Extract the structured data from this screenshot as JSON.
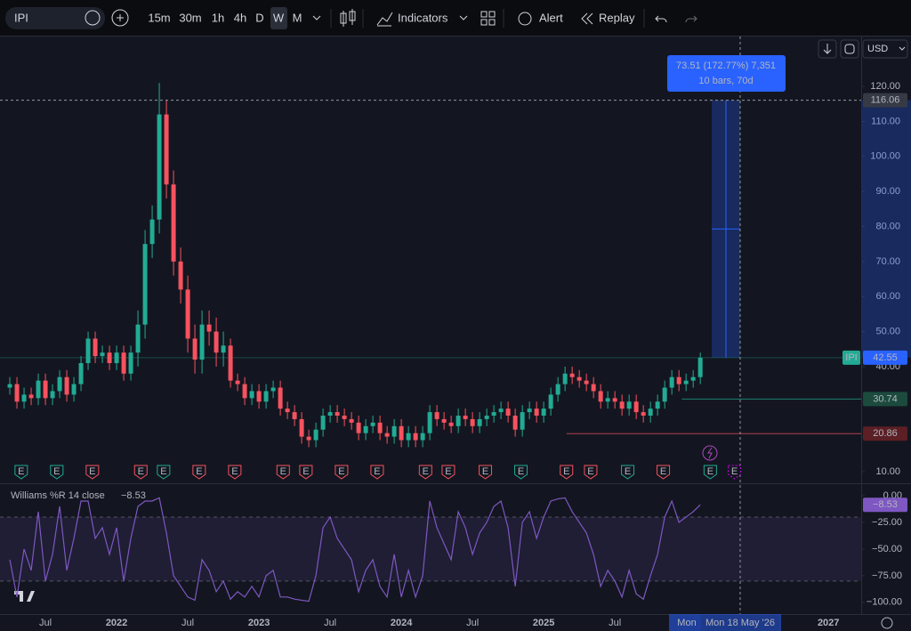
{
  "toolbar": {
    "symbol": "IPI",
    "intervals": [
      "15m",
      "30m",
      "1h",
      "4h",
      "D",
      "W",
      "M"
    ],
    "active_interval": "W",
    "indicators": "Indicators",
    "alert": "Alert",
    "replay": "Replay",
    "currency": "USD"
  },
  "chart_data": [
    {
      "type": "candlestick",
      "symbol": "IPI",
      "x": [
        2021.25,
        2021.3,
        2021.35,
        2021.4,
        2021.45,
        2021.5,
        2021.55,
        2021.6,
        2021.65,
        2021.7,
        2021.75,
        2021.8,
        2021.85,
        2021.9,
        2021.95,
        2022,
        2022.05,
        2022.1,
        2022.15,
        2022.2,
        2022.25,
        2022.3,
        2022.35,
        2022.4,
        2022.45,
        2022.5,
        2022.55,
        2022.6,
        2022.65,
        2022.7,
        2022.75,
        2022.8,
        2022.85,
        2022.9,
        2022.95,
        2023,
        2023.05,
        2023.1,
        2023.15,
        2023.2,
        2023.25,
        2023.3,
        2023.35,
        2023.4,
        2023.45,
        2023.5,
        2023.55,
        2023.6,
        2023.65,
        2023.7,
        2023.75,
        2023.8,
        2023.85,
        2023.9,
        2023.95,
        2024,
        2024.05,
        2024.1,
        2024.15,
        2024.2,
        2024.25,
        2024.3,
        2024.35,
        2024.4,
        2024.45,
        2024.5,
        2024.55,
        2024.6,
        2024.65,
        2024.7,
        2024.75,
        2024.8,
        2024.85,
        2024.9,
        2024.95,
        2025,
        2025.05,
        2025.1,
        2025.15,
        2025.2,
        2025.25,
        2025.3,
        2025.35,
        2025.4,
        2025.45,
        2025.5,
        2025.55,
        2025.6,
        2025.65,
        2025.7,
        2025.75,
        2025.8,
        2025.85,
        2025.9,
        2025.95,
        2026,
        2026.05,
        2026.1
      ],
      "open": [
        34,
        35,
        30,
        32,
        31,
        36,
        31,
        33,
        37,
        32,
        35,
        41,
        48,
        43,
        44,
        41,
        44,
        38,
        44,
        52,
        75,
        82,
        112,
        92,
        70,
        62,
        48,
        42,
        52,
        50,
        44,
        46,
        36,
        35,
        31,
        33,
        30,
        33,
        34,
        28,
        27,
        25,
        20,
        19,
        22,
        26,
        27,
        26,
        25,
        24,
        21,
        23,
        24,
        21,
        20,
        23,
        19,
        21,
        19,
        21,
        27,
        25,
        24,
        23,
        26,
        25,
        23,
        25,
        26,
        27,
        28,
        26,
        22,
        27,
        28,
        26,
        28,
        32,
        35,
        38,
        37,
        36,
        35,
        33,
        30,
        31,
        30,
        28,
        30,
        27,
        26,
        28,
        30,
        34,
        37,
        35,
        36,
        37
      ],
      "high": [
        37,
        37,
        34,
        34,
        38,
        38,
        35,
        39,
        39,
        37,
        43,
        50,
        50,
        46,
        46,
        46,
        46,
        46,
        56,
        79,
        86,
        121,
        116,
        96,
        74,
        66,
        52,
        56,
        56,
        54,
        50,
        48,
        38,
        37,
        35,
        35,
        35,
        36,
        36,
        30,
        29,
        27,
        22,
        24,
        28,
        29,
        29,
        28,
        27,
        26,
        25,
        26,
        26,
        23,
        25,
        25,
        23,
        23,
        23,
        29,
        29,
        27,
        26,
        28,
        28,
        27,
        27,
        28,
        29,
        30,
        30,
        28,
        29,
        30,
        30,
        30,
        34,
        37,
        40,
        40,
        39,
        38,
        37,
        35,
        33,
        33,
        32,
        32,
        32,
        29,
        30,
        32,
        36,
        39,
        39,
        38,
        39,
        44
      ],
      "low": [
        32,
        28,
        28,
        29,
        29,
        29,
        29,
        31,
        30,
        30,
        33,
        39,
        41,
        41,
        39,
        39,
        36,
        36,
        40,
        48,
        71,
        78,
        88,
        66,
        58,
        44,
        38,
        38,
        46,
        40,
        40,
        34,
        33,
        29,
        29,
        28,
        28,
        31,
        26,
        25,
        23,
        18,
        17,
        17,
        20,
        24,
        24,
        23,
        22,
        19,
        19,
        21,
        19,
        18,
        18,
        17,
        17,
        17,
        17,
        19,
        23,
        22,
        21,
        21,
        23,
        21,
        21,
        23,
        24,
        25,
        24,
        20,
        20,
        25,
        24,
        24,
        26,
        30,
        33,
        35,
        34,
        33,
        31,
        28,
        28,
        28,
        26,
        26,
        25,
        24,
        24,
        26,
        28,
        32,
        33,
        33,
        34,
        35
      ],
      "close": [
        35,
        30,
        32,
        31,
        36,
        31,
        33,
        37,
        32,
        35,
        41,
        48,
        43,
        44,
        41,
        44,
        38,
        44,
        52,
        75,
        82,
        112,
        92,
        70,
        62,
        48,
        42,
        52,
        50,
        44,
        46,
        36,
        35,
        31,
        33,
        30,
        33,
        34,
        28,
        27,
        25,
        20,
        19,
        22,
        26,
        27,
        26,
        25,
        24,
        21,
        23,
        24,
        21,
        20,
        23,
        19,
        21,
        19,
        21,
        27,
        25,
        24,
        23,
        26,
        25,
        23,
        25,
        26,
        27,
        28,
        26,
        22,
        27,
        28,
        26,
        28,
        32,
        35,
        38,
        37,
        36,
        35,
        33,
        30,
        31,
        30,
        28,
        30,
        27,
        26,
        28,
        30,
        34,
        37,
        35,
        36,
        37,
        42.55
      ],
      "up_color": "#22ab94",
      "down_color": "#f7525f",
      "xlim": [
        2021.206,
        2027.23
      ],
      "ylim": [
        7.2,
        134
      ],
      "yticks": [
        {
          "value": 10,
          "label": "10.00"
        },
        {
          "value": 20,
          "label": "20.00"
        },
        {
          "value": 30,
          "label": "30.00"
        },
        {
          "value": 40,
          "label": "40.00"
        },
        {
          "value": 50,
          "label": "50.00"
        },
        {
          "value": 60,
          "label": "60.00"
        },
        {
          "value": 70,
          "label": "70.00"
        },
        {
          "value": 80,
          "label": "80.00"
        },
        {
          "value": 90,
          "label": "90.00"
        },
        {
          "value": 100,
          "label": "100.00"
        },
        {
          "value": 110,
          "label": "110.00"
        },
        {
          "value": 120,
          "label": "120.00"
        }
      ],
      "xticks": [
        {
          "value": 2021.5,
          "label": "Jul"
        },
        {
          "value": 2022,
          "label": "2022"
        },
        {
          "value": 2022.5,
          "label": "Jul"
        },
        {
          "value": 2023,
          "label": "2023"
        },
        {
          "value": 2023.5,
          "label": "Jul"
        },
        {
          "value": 2024,
          "label": "2024"
        },
        {
          "value": 2024.5,
          "label": "Jul"
        },
        {
          "value": 2025,
          "label": "2025"
        },
        {
          "value": 2025.5,
          "label": "Jul"
        },
        {
          "value": 2027,
          "label": "2027"
        }
      ],
      "last_price": 42.55,
      "price_lines": [
        {
          "value": 30.74,
          "from": 2025.97,
          "color": "#22ab94"
        },
        {
          "value": 20.86,
          "from": 2025.16,
          "color": "#f7525f"
        }
      ],
      "crosshair": {
        "x": 2026.38,
        "y": 116.06,
        "x_label": "Mon 18 May '26"
      },
      "range_start_label": "Mon",
      "measure": {
        "x": [
          2026.18,
          2026.38
        ],
        "y": [
          42.55,
          116.06
        ],
        "label": "73.51 (172.77%) 7,351",
        "sublabel": "10 bars, 70d"
      },
      "earnings": {
        "label": "E",
        "x": [
          2021.33,
          2021.58,
          2021.83,
          2022.17,
          2022.33,
          2022.58,
          2022.83,
          2023.17,
          2023.33,
          2023.58,
          2023.83,
          2024.17,
          2024.33,
          2024.59,
          2024.84,
          2025.16,
          2025.33,
          2025.59,
          2025.84,
          2026.17,
          2026.34
        ],
        "colors": [
          "#22ab94",
          "#22ab94",
          "#f7525f",
          "#f7525f",
          "#22ab94",
          "#f7525f",
          "#f7525f",
          "#f7525f",
          "#f7525f",
          "#f7525f",
          "#f7525f",
          "#f7525f",
          "#f7525f",
          "#f7525f",
          "#22ab94",
          "#f7525f",
          "#f7525f",
          "#22ab94",
          "#f7525f",
          "#22ab94",
          "#d500f9"
        ]
      }
    },
    {
      "type": "line",
      "title": "Williams %R 14 close",
      "color": "#7e57c2",
      "x": [
        2021.25,
        2021.3,
        2021.35,
        2021.4,
        2021.45,
        2021.5,
        2021.55,
        2021.6,
        2021.65,
        2021.7,
        2021.75,
        2021.8,
        2021.85,
        2021.9,
        2021.95,
        2022,
        2022.05,
        2022.1,
        2022.15,
        2022.2,
        2022.25,
        2022.3,
        2022.35,
        2022.4,
        2022.45,
        2022.5,
        2022.55,
        2022.6,
        2022.65,
        2022.7,
        2022.75,
        2022.8,
        2022.85,
        2022.9,
        2022.95,
        2023,
        2023.05,
        2023.1,
        2023.15,
        2023.2,
        2023.25,
        2023.3,
        2023.35,
        2023.4,
        2023.45,
        2023.5,
        2023.55,
        2023.6,
        2023.65,
        2023.7,
        2023.75,
        2023.8,
        2023.85,
        2023.9,
        2023.95,
        2024,
        2024.05,
        2024.1,
        2024.15,
        2024.2,
        2024.25,
        2024.3,
        2024.35,
        2024.4,
        2024.45,
        2024.5,
        2024.55,
        2024.6,
        2024.65,
        2024.7,
        2024.75,
        2024.8,
        2024.85,
        2024.9,
        2024.95,
        2025,
        2025.05,
        2025.1,
        2025.15,
        2025.2,
        2025.25,
        2025.3,
        2025.35,
        2025.4,
        2025.45,
        2025.5,
        2025.55,
        2025.6,
        2025.65,
        2025.7,
        2025.75,
        2025.8,
        2025.85,
        2025.9,
        2025.95,
        2026,
        2026.05,
        2026.1
      ],
      "values": [
        -60,
        -95,
        -50,
        -70,
        -15,
        -80,
        -55,
        -10,
        -70,
        -40,
        -5,
        -5,
        -40,
        -30,
        -55,
        -30,
        -80,
        -40,
        -10,
        -5,
        -5,
        -2,
        -35,
        -75,
        -85,
        -95,
        -98,
        -60,
        -70,
        -90,
        -80,
        -97,
        -90,
        -95,
        -85,
        -95,
        -75,
        -70,
        -95,
        -95,
        -97,
        -98,
        -99,
        -75,
        -30,
        -20,
        -40,
        -50,
        -60,
        -90,
        -70,
        -60,
        -85,
        -95,
        -55,
        -95,
        -70,
        -95,
        -75,
        -5,
        -30,
        -45,
        -60,
        -15,
        -30,
        -55,
        -35,
        -25,
        -10,
        -5,
        -30,
        -85,
        -25,
        -15,
        -40,
        -20,
        -5,
        -3,
        -2,
        -15,
        -25,
        -35,
        -55,
        -85,
        -70,
        -80,
        -95,
        -70,
        -92,
        -97,
        -75,
        -55,
        -20,
        -5,
        -25,
        -20,
        -15,
        -8.53
      ],
      "xlim": [
        2021.206,
        2027.23
      ],
      "ylim": [
        -111,
        10
      ],
      "yticks": [
        {
          "value": 0,
          "label": "0.00"
        },
        {
          "value": -25,
          "label": "−25.00"
        },
        {
          "value": -50,
          "label": "−50.00"
        },
        {
          "value": -75,
          "label": "−75.00"
        },
        {
          "value": -100,
          "label": "−100.00"
        }
      ],
      "band": [
        -80,
        -20
      ],
      "last_value": {
        "value": -8.53,
        "label": "−8.53"
      }
    }
  ]
}
